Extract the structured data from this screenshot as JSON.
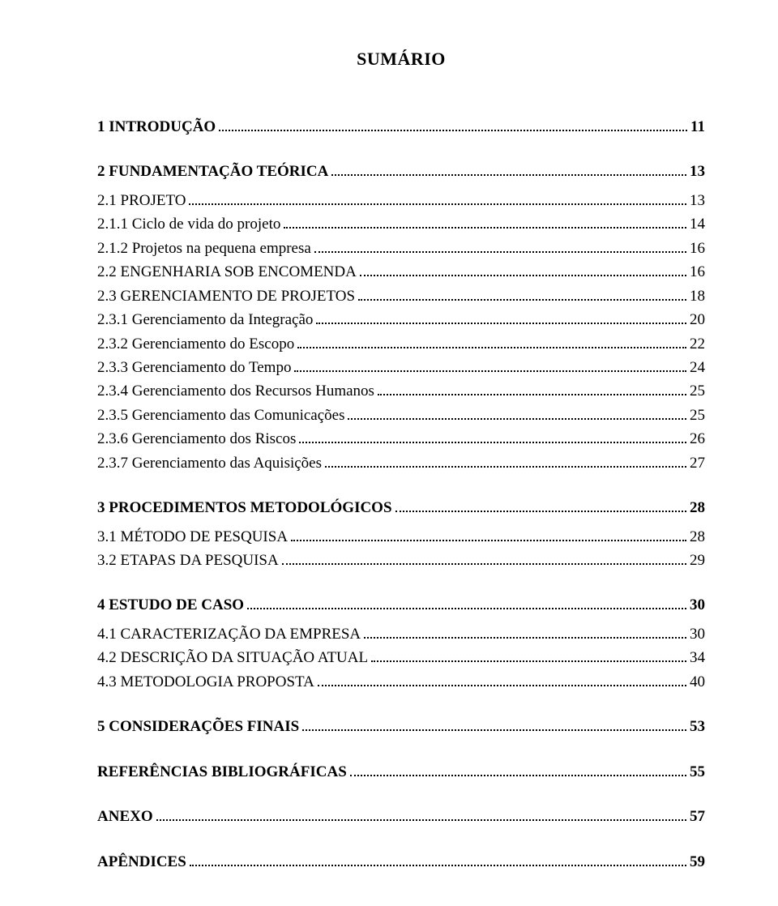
{
  "title": "SUMÁRIO",
  "typography": {
    "title_fontsize": 22,
    "body_fontsize": 19,
    "font_family": "Times New Roman",
    "text_color": "#000000",
    "background_color": "#ffffff",
    "leader_style": "dotted",
    "bold_weight": 700
  },
  "entries": [
    {
      "label": "1 INTRODUÇÃO",
      "page": "11",
      "bold": true,
      "gap_before": "none"
    },
    {
      "label": "2 FUNDAMENTAÇÃO TEÓRICA",
      "page": "13",
      "bold": true,
      "gap_before": "lg"
    },
    {
      "label": "2.1 PROJETO",
      "page": "13",
      "bold": false,
      "gap_before": "sm"
    },
    {
      "label": "2.1.1 Ciclo de vida do projeto",
      "page": "14",
      "bold": false,
      "gap_before": "none"
    },
    {
      "label": "2.1.2 Projetos na pequena empresa",
      "page": "16",
      "bold": false,
      "gap_before": "none"
    },
    {
      "label": "2.2 ENGENHARIA SOB ENCOMENDA",
      "page": "16",
      "bold": false,
      "gap_before": "none"
    },
    {
      "label": "2.3 GERENCIAMENTO DE PROJETOS",
      "page": "18",
      "bold": false,
      "gap_before": "none"
    },
    {
      "label": "2.3.1 Gerenciamento da Integração",
      "page": "20",
      "bold": false,
      "gap_before": "none"
    },
    {
      "label": "2.3.2 Gerenciamento do Escopo",
      "page": "22",
      "bold": false,
      "gap_before": "none"
    },
    {
      "label": "2.3.3 Gerenciamento do Tempo",
      "page": "24",
      "bold": false,
      "gap_before": "none"
    },
    {
      "label": "2.3.4 Gerenciamento dos Recursos Humanos",
      "page": "25",
      "bold": false,
      "gap_before": "none"
    },
    {
      "label": "2.3.5 Gerenciamento das Comunicações",
      "page": "25",
      "bold": false,
      "gap_before": "none"
    },
    {
      "label": "2.3.6 Gerenciamento dos Riscos",
      "page": "26",
      "bold": false,
      "gap_before": "none"
    },
    {
      "label": "2.3.7 Gerenciamento das Aquisições",
      "page": "27",
      "bold": false,
      "gap_before": "none"
    },
    {
      "label": "3 PROCEDIMENTOS METODOLÓGICOS",
      "page": "28",
      "bold": true,
      "gap_before": "lg"
    },
    {
      "label": "3.1 MÉTODO DE PESQUISA",
      "page": "28",
      "bold": false,
      "gap_before": "sm"
    },
    {
      "label": "3.2 ETAPAS DA PESQUISA",
      "page": "29",
      "bold": false,
      "gap_before": "none"
    },
    {
      "label": "4 ESTUDO DE CASO",
      "page": "30",
      "bold": true,
      "gap_before": "lg"
    },
    {
      "label": "4.1 CARACTERIZAÇÃO DA EMPRESA",
      "page": "30",
      "bold": false,
      "gap_before": "sm"
    },
    {
      "label": "4.2 DESCRIÇÃO DA SITUAÇÃO ATUAL",
      "page": "34",
      "bold": false,
      "gap_before": "none"
    },
    {
      "label": "4.3 METODOLOGIA PROPOSTA",
      "page": "40",
      "bold": false,
      "gap_before": "none"
    },
    {
      "label": "5 CONSIDERAÇÕES FINAIS",
      "page": "53",
      "bold": true,
      "gap_before": "lg"
    },
    {
      "label": "REFERÊNCIAS BIBLIOGRÁFICAS",
      "page": "55",
      "bold": true,
      "gap_before": "lg"
    },
    {
      "label": "ANEXO",
      "page": "57",
      "bold": true,
      "gap_before": "lg"
    },
    {
      "label": "APÊNDICES",
      "page": "59",
      "bold": true,
      "gap_before": "lg"
    }
  ]
}
